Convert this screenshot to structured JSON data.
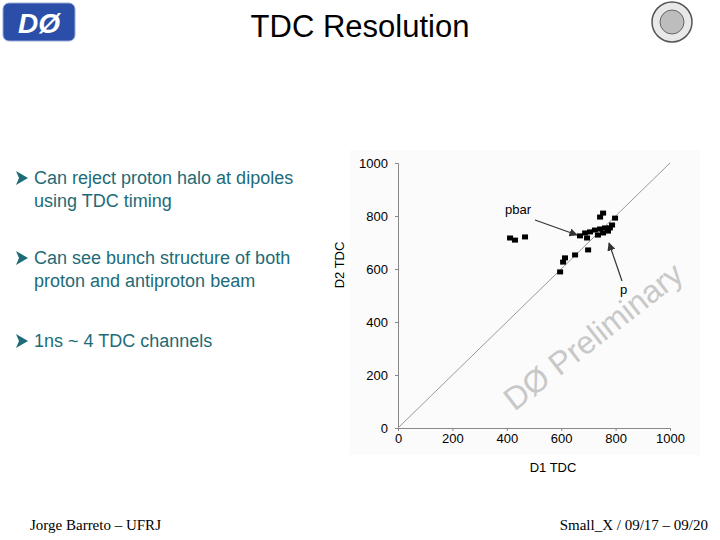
{
  "slide": {
    "logo": "DØ",
    "title": "TDC Resolution",
    "bullets": [
      [
        "Can reject proton halo at dipoles",
        "using TDC timing"
      ],
      [
        "Can see bunch structure of both",
        "proton and antiproton beam"
      ],
      [
        "1ns ~ 4 TDC channels"
      ]
    ],
    "footer_left": "Jorge Barreto – UFRJ",
    "footer_right": "Small_X / 09/17 – 09/20"
  },
  "chart_data": {
    "type": "scatter",
    "x_label": "D1 TDC",
    "y_label": "D2 TDC",
    "annotations": [
      "pbar",
      "p",
      "DØ Preliminary"
    ],
    "x": [
      669,
      688,
      706,
      724,
      743,
      761,
      779,
      735,
      754,
      772,
      695,
      787,
      754,
      743,
      798,
      607,
      596,
      614,
      430,
      467,
      412,
      699,
      651
    ],
    "values": [
      725,
      736,
      740,
      747,
      751,
      755,
      755,
      728,
      736,
      743,
      717,
      766,
      811,
      796,
      792,
      626,
      589,
      642,
      709,
      721,
      717,
      672,
      653
    ],
    "color": "#000000",
    "marker": "square",
    "xlim": [
      0,
      1000
    ],
    "xticks": [
      0,
      200,
      400,
      600,
      800,
      1000
    ],
    "ylim": [
      0,
      1000
    ],
    "yticks": [
      0,
      200,
      400,
      600,
      800,
      1000
    ],
    "grid": false
  }
}
